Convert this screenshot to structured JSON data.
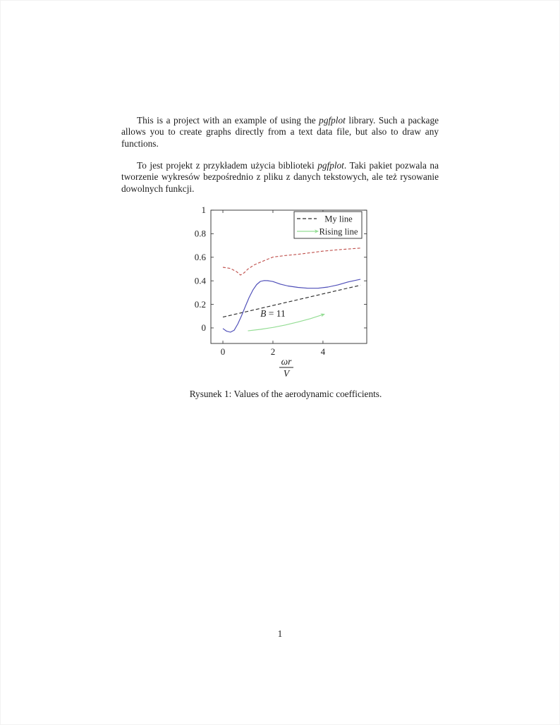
{
  "document": {
    "paragraph_en": {
      "before_italic": "This is a project with an example of using the ",
      "italic": "pgfplot",
      "after_italic": " library. Such a package allows you to create graphs directly from a text data file, but also to draw any functions."
    },
    "paragraph_pl": {
      "before_italic": "To jest projekt z przykładem użycia biblioteki ",
      "italic": "pgfplot",
      "after_italic": ". Taki pakiet pozwala na tworzenie wykresów bezpośrednio z pliku z danych tekstowych, ale też rysowanie dowolnych funkcji."
    }
  },
  "figure": {
    "caption": "Rysunek 1: Values of the aerodynamic coefficients."
  },
  "page": {
    "number": "1"
  },
  "chart_data": {
    "type": "line",
    "title": "",
    "xlabel_fraction": {
      "numerator": "ωr",
      "denominator": "V"
    },
    "ylabel": "",
    "xlim": [
      -0.48,
      5.75
    ],
    "ylim": [
      -0.132,
      1.0
    ],
    "grid": "off",
    "axis_color": "#2a2a2a",
    "xticks": [
      {
        "v": 0,
        "label": "0"
      },
      {
        "v": 2,
        "label": "2"
      },
      {
        "v": 4,
        "label": "4"
      }
    ],
    "yticks": [
      {
        "v": 0,
        "label": "0"
      },
      {
        "v": 0.2,
        "label": "0.2"
      },
      {
        "v": 0.4,
        "label": "0.4"
      },
      {
        "v": 0.6,
        "label": "0.6"
      },
      {
        "v": 0.8,
        "label": "0.8"
      },
      {
        "v": 1,
        "label": "1"
      }
    ],
    "annotation": {
      "variable": "B",
      "rest": " = 11",
      "x": 2.0,
      "y": 0.12
    },
    "series": [
      {
        "name": "red-dashed-curve",
        "color": "#c0524e",
        "dash": "4 2.5",
        "points": [
          [
            0,
            0.515
          ],
          [
            0.3,
            0.505
          ],
          [
            0.55,
            0.478
          ],
          [
            0.7,
            0.449
          ],
          [
            0.85,
            0.468
          ],
          [
            1.0,
            0.5
          ],
          [
            1.25,
            0.535
          ],
          [
            1.5,
            0.558
          ],
          [
            1.75,
            0.58
          ],
          [
            2.0,
            0.602
          ],
          [
            2.5,
            0.615
          ],
          [
            3.0,
            0.625
          ],
          [
            3.5,
            0.638
          ],
          [
            4.0,
            0.652
          ],
          [
            4.5,
            0.662
          ],
          [
            5.0,
            0.67
          ],
          [
            5.5,
            0.678
          ]
        ]
      },
      {
        "name": "My line",
        "color": "#2b2b2b",
        "dash": "5 3",
        "points": [
          [
            0,
            0.092
          ],
          [
            5.5,
            0.363
          ]
        ]
      },
      {
        "name": "blue-curve",
        "color": "#4d4db8",
        "dash": null,
        "points": [
          [
            0,
            -0.005
          ],
          [
            0.15,
            -0.028
          ],
          [
            0.3,
            -0.036
          ],
          [
            0.45,
            -0.02
          ],
          [
            0.6,
            0.035
          ],
          [
            0.75,
            0.105
          ],
          [
            0.9,
            0.185
          ],
          [
            1.05,
            0.26
          ],
          [
            1.2,
            0.322
          ],
          [
            1.35,
            0.368
          ],
          [
            1.5,
            0.395
          ],
          [
            1.65,
            0.402
          ],
          [
            1.8,
            0.401
          ],
          [
            2.0,
            0.394
          ],
          [
            2.3,
            0.372
          ],
          [
            2.6,
            0.356
          ],
          [
            3.0,
            0.344
          ],
          [
            3.4,
            0.337
          ],
          [
            3.8,
            0.337
          ],
          [
            4.2,
            0.347
          ],
          [
            4.6,
            0.366
          ],
          [
            5.0,
            0.39
          ],
          [
            5.5,
            0.413
          ]
        ]
      },
      {
        "name": "Rising line",
        "color": "#94dd94",
        "dash": null,
        "arrow": true,
        "points": [
          [
            1,
            -0.025
          ],
          [
            1.5,
            -0.012
          ],
          [
            2,
            0.004
          ],
          [
            2.5,
            0.025
          ],
          [
            3,
            0.05
          ],
          [
            3.5,
            0.079
          ],
          [
            4,
            0.113
          ]
        ]
      }
    ],
    "legend": {
      "position": "north east",
      "entries": [
        {
          "label": "My line",
          "color": "#2b2b2b",
          "dash": "5 3",
          "arrow": false
        },
        {
          "label": "Rising line",
          "color": "#94dd94",
          "dash": null,
          "arrow": true
        }
      ]
    }
  }
}
